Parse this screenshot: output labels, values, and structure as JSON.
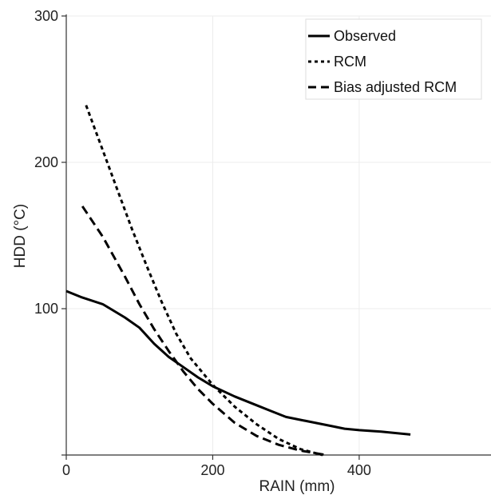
{
  "chart_data": {
    "type": "line",
    "xlabel": "RAIN (mm)",
    "ylabel": "HDD (°C)",
    "xlim": [
      0,
      580
    ],
    "ylim": [
      0,
      300
    ],
    "x_ticks": [
      0,
      200,
      400
    ],
    "y_ticks": [
      100,
      200,
      300
    ],
    "grid": true,
    "legend_position": "top-right",
    "series": [
      {
        "name": "Observed",
        "style": "solid",
        "color": "#000000",
        "x": [
          0,
          20,
          50,
          80,
          100,
          120,
          140,
          160,
          180,
          200,
          230,
          260,
          280,
          300,
          330,
          360,
          380,
          400,
          430,
          470
        ],
        "y": [
          112,
          108,
          103,
          94,
          87,
          76,
          67,
          60,
          53,
          47,
          40,
          34,
          30,
          26,
          23,
          20,
          18,
          17,
          16,
          14
        ]
      },
      {
        "name": "RCM",
        "style": "dotted",
        "color": "#000000",
        "x": [
          27,
          50,
          70,
          90,
          110,
          130,
          150,
          170,
          200,
          230,
          260,
          290,
          320,
          350
        ],
        "y": [
          239,
          208,
          181,
          154,
          129,
          105,
          83,
          66,
          48,
          33,
          21,
          11,
          4,
          0
        ]
      },
      {
        "name": "Bias adjusted RCM",
        "style": "dashed",
        "color": "#000000",
        "x": [
          22,
          50,
          80,
          100,
          120,
          140,
          160,
          180,
          200,
          230,
          260,
          290,
          320,
          355
        ],
        "y": [
          170,
          149,
          122,
          103,
          86,
          71,
          57,
          45,
          35,
          22,
          13,
          7,
          3,
          0
        ]
      }
    ]
  }
}
